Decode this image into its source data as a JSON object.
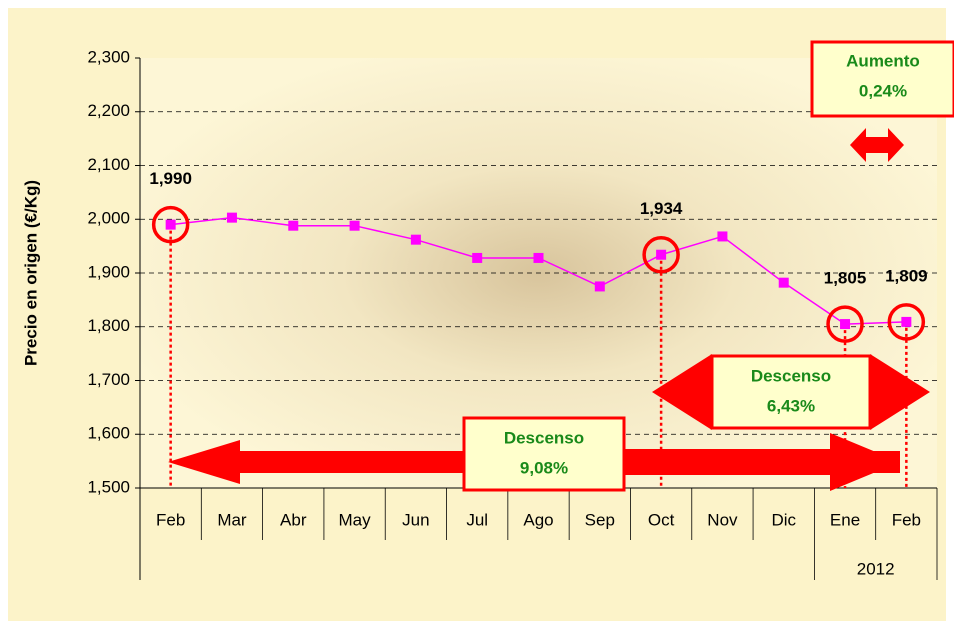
{
  "chart_data": {
    "type": "line",
    "y_axis_label": "Precio en origen (€/Kg)",
    "categories": [
      "Feb",
      "Mar",
      "Abr",
      "May",
      "Jun",
      "Jul",
      "Ago",
      "Sep",
      "Oct",
      "Nov",
      "Dic",
      "Ene",
      "Feb"
    ],
    "category_groups": [
      null,
      null,
      null,
      null,
      null,
      null,
      null,
      null,
      null,
      null,
      null,
      "2012",
      null
    ],
    "series": [
      {
        "color": "#ff00ff",
        "values": [
          1.99,
          2.003,
          1.988,
          1.988,
          1.962,
          1.928,
          1.928,
          1.875,
          1.934,
          1.968,
          1.882,
          1.805,
          1.809
        ],
        "value_labels": [
          "1,990",
          null,
          null,
          null,
          null,
          null,
          null,
          null,
          "1,934",
          null,
          null,
          "1,805",
          "1,809"
        ]
      }
    ],
    "ylim": [
      1.5,
      2.3
    ],
    "yticks": [
      {
        "value": 1.5,
        "label": "1,500"
      },
      {
        "value": 1.6,
        "label": "1,600"
      },
      {
        "value": 1.7,
        "label": "1,700"
      },
      {
        "value": 1.8,
        "label": "1,800"
      },
      {
        "value": 1.9,
        "label": "1,900"
      },
      {
        "value": 2.0,
        "label": "2,000"
      },
      {
        "value": 2.1,
        "label": "2,100"
      },
      {
        "value": 2.2,
        "label": "2,200"
      },
      {
        "value": 2.3,
        "label": "2,300"
      }
    ],
    "grid": true,
    "annotations": [
      {
        "title": "Aumento",
        "text": "0,24%"
      },
      {
        "title": "Descenso",
        "text": "6,43%"
      },
      {
        "title": "Descenso",
        "text": "9,08%"
      }
    ]
  }
}
